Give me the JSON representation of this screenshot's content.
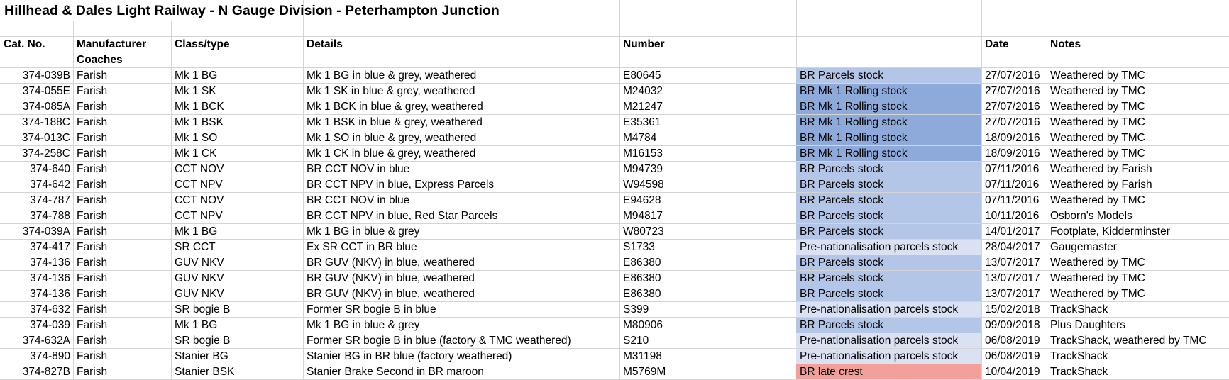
{
  "title": "Hillhead & Dales Light Railway - N Gauge Division - Peterhampton Junction",
  "headers": {
    "cat": "Cat. No.",
    "manufacturer": "Manufacturer",
    "class": "Class/type",
    "details": "Details",
    "number": "Number",
    "date": "Date",
    "notes": "Notes"
  },
  "section": "Coaches",
  "group_colors": {
    "BR Parcels stock": "#b4c6e7",
    "BR Mk 1 Rolling stock": "#8eaadb",
    "Pre-nationalisation parcels stock": "#d9e1f2",
    "BR late crest": "#f4a09a"
  },
  "rows": [
    {
      "cat": "374-039B",
      "manufacturer": "Farish",
      "class": "Mk 1 BG",
      "details": "Mk 1 BG in blue & grey, weathered",
      "number": "E80645",
      "group": "BR Parcels stock",
      "date": "27/07/2016",
      "notes": "Weathered by TMC"
    },
    {
      "cat": "374-055E",
      "manufacturer": "Farish",
      "class": "Mk 1 SK",
      "details": "Mk 1 SK in blue & grey, weathered",
      "number": "M24032",
      "group": "BR Mk 1 Rolling stock",
      "date": "27/07/2016",
      "notes": "Weathered by TMC"
    },
    {
      "cat": "374-085A",
      "manufacturer": "Farish",
      "class": "Mk 1 BCK",
      "details": "Mk 1 BCK in blue & grey, weathered",
      "number": "M21247",
      "group": "BR Mk 1 Rolling stock",
      "date": "27/07/2016",
      "notes": "Weathered by TMC"
    },
    {
      "cat": "374-188C",
      "manufacturer": "Farish",
      "class": "Mk 1 BSK",
      "details": "Mk 1 BSK in blue & grey, weathered",
      "number": "E35361",
      "group": "BR Mk 1 Rolling stock",
      "date": "27/07/2016",
      "notes": "Weathered by TMC"
    },
    {
      "cat": "374-013C",
      "manufacturer": "Farish",
      "class": "Mk 1 SO",
      "details": "Mk 1 SO in blue & grey, weathered",
      "number": "M4784",
      "group": "BR Mk 1 Rolling stock",
      "date": "18/09/2016",
      "notes": "Weathered by TMC"
    },
    {
      "cat": "374-258C",
      "manufacturer": "Farish",
      "class": "Mk 1 CK",
      "details": "Mk 1 CK in blue & grey, weathered",
      "number": "M16153",
      "group": "BR Mk 1 Rolling stock",
      "date": "18/09/2016",
      "notes": "Weathered by TMC"
    },
    {
      "cat": "374-640",
      "manufacturer": "Farish",
      "class": "CCT NOV",
      "details": "BR CCT NOV in blue",
      "number": "M94739",
      "group": "BR Parcels stock",
      "date": "07/11/2016",
      "notes": "Weathered by Farish"
    },
    {
      "cat": "374-642",
      "manufacturer": "Farish",
      "class": "CCT NPV",
      "details": "BR CCT NPV in blue, Express Parcels",
      "number": "W94598",
      "group": "BR Parcels stock",
      "date": "07/11/2016",
      "notes": "Weathered by Farish"
    },
    {
      "cat": "374-787",
      "manufacturer": "Farish",
      "class": "CCT NOV",
      "details": "BR CCT NOV in blue",
      "number": "E94628",
      "group": "BR Parcels stock",
      "date": "07/11/2016",
      "notes": "Weathered by TMC"
    },
    {
      "cat": "374-788",
      "manufacturer": "Farish",
      "class": "CCT NPV",
      "details": "BR CCT NPV in blue, Red Star Parcels",
      "number": "M94817",
      "group": "BR Parcels stock",
      "date": "10/11/2016",
      "notes": "Osborn's Models"
    },
    {
      "cat": "374-039A",
      "manufacturer": "Farish",
      "class": "Mk 1 BG",
      "details": "Mk 1 BG in blue & grey",
      "number": "W80723",
      "group": "BR Parcels stock",
      "date": "14/01/2017",
      "notes": "Footplate, Kidderminster"
    },
    {
      "cat": "374-417",
      "manufacturer": "Farish",
      "class": "SR CCT",
      "details": "Ex SR CCT in BR blue",
      "number": "S1733",
      "group": "Pre-nationalisation parcels stock",
      "date": "28/04/2017",
      "notes": "Gaugemaster"
    },
    {
      "cat": "374-136",
      "manufacturer": "Farish",
      "class": "GUV NKV",
      "details": "BR GUV (NKV) in blue, weathered",
      "number": "E86380",
      "group": "BR Parcels stock",
      "date": "13/07/2017",
      "notes": "Weathered by TMC"
    },
    {
      "cat": "374-136",
      "manufacturer": "Farish",
      "class": "GUV NKV",
      "details": "BR GUV (NKV) in blue, weathered",
      "number": "E86380",
      "group": "BR Parcels stock",
      "date": "13/07/2017",
      "notes": "Weathered by TMC"
    },
    {
      "cat": "374-136",
      "manufacturer": "Farish",
      "class": "GUV NKV",
      "details": "BR GUV (NKV) in blue, weathered",
      "number": "E86380",
      "group": "BR Parcels stock",
      "date": "13/07/2017",
      "notes": "Weathered by TMC"
    },
    {
      "cat": "374-632",
      "manufacturer": "Farish",
      "class": "SR bogie B",
      "details": "Former SR bogie B in blue",
      "number": "S399",
      "group": "Pre-nationalisation parcels stock",
      "date": "15/02/2018",
      "notes": "TrackShack"
    },
    {
      "cat": "374-039",
      "manufacturer": "Farish",
      "class": "Mk 1 BG",
      "details": "Mk 1 BG in blue & grey",
      "number": "M80906",
      "group": "BR Parcels stock",
      "date": "09/09/2018",
      "notes": "Plus Daughters"
    },
    {
      "cat": "374-632A",
      "manufacturer": "Farish",
      "class": "SR bogie B",
      "details": "Former SR bogie B in blue (factory & TMC weathered)",
      "number": "S210",
      "group": "Pre-nationalisation parcels stock",
      "date": "06/08/2019",
      "notes": "TrackShack, weathered by TMC"
    },
    {
      "cat": "374-890",
      "manufacturer": "Farish",
      "class": "Stanier BG",
      "details": "Stanier BG in BR blue (factory weathered)",
      "number": "M31198",
      "group": "Pre-nationalisation parcels stock",
      "date": "06/08/2019",
      "notes": "TrackShack"
    },
    {
      "cat": "374-827B",
      "manufacturer": "Farish",
      "class": "Stanier BSK",
      "details": "Stanier Brake Second in BR maroon",
      "number": "M5769M",
      "group": "BR late crest",
      "date": "10/04/2019",
      "notes": "TrackShack"
    }
  ]
}
